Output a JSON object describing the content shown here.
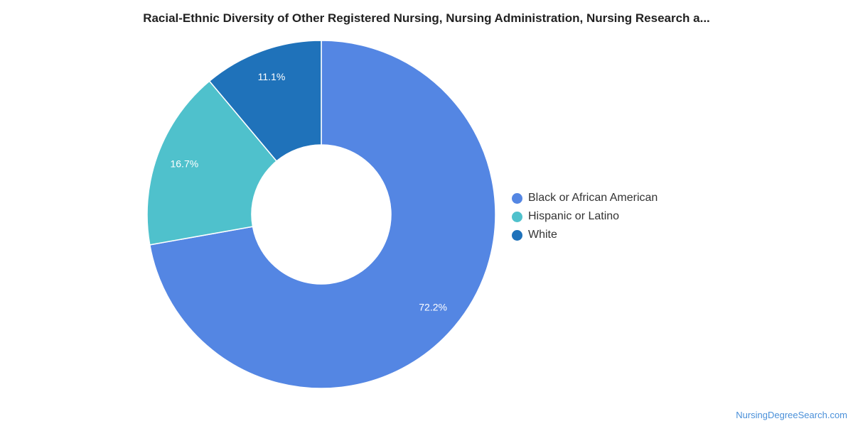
{
  "chart_data": {
    "type": "pie",
    "variant": "donut",
    "title": "Racial-Ethnic Diversity of Other Registered Nursing, Nursing Administration, Nursing Research a...",
    "categories": [
      "Black or African American",
      "Hispanic or Latino",
      "White"
    ],
    "values": [
      72.2,
      16.7,
      11.1
    ],
    "labels": [
      "72.2%",
      "16.7%",
      "11.1%"
    ],
    "colors": [
      "#5486e3",
      "#4fc1cc",
      "#1f72ba"
    ],
    "start": "top",
    "direction": "clockwise",
    "legend_position": "right",
    "grid": false
  },
  "watermark": "NursingDegreeSearch.com"
}
